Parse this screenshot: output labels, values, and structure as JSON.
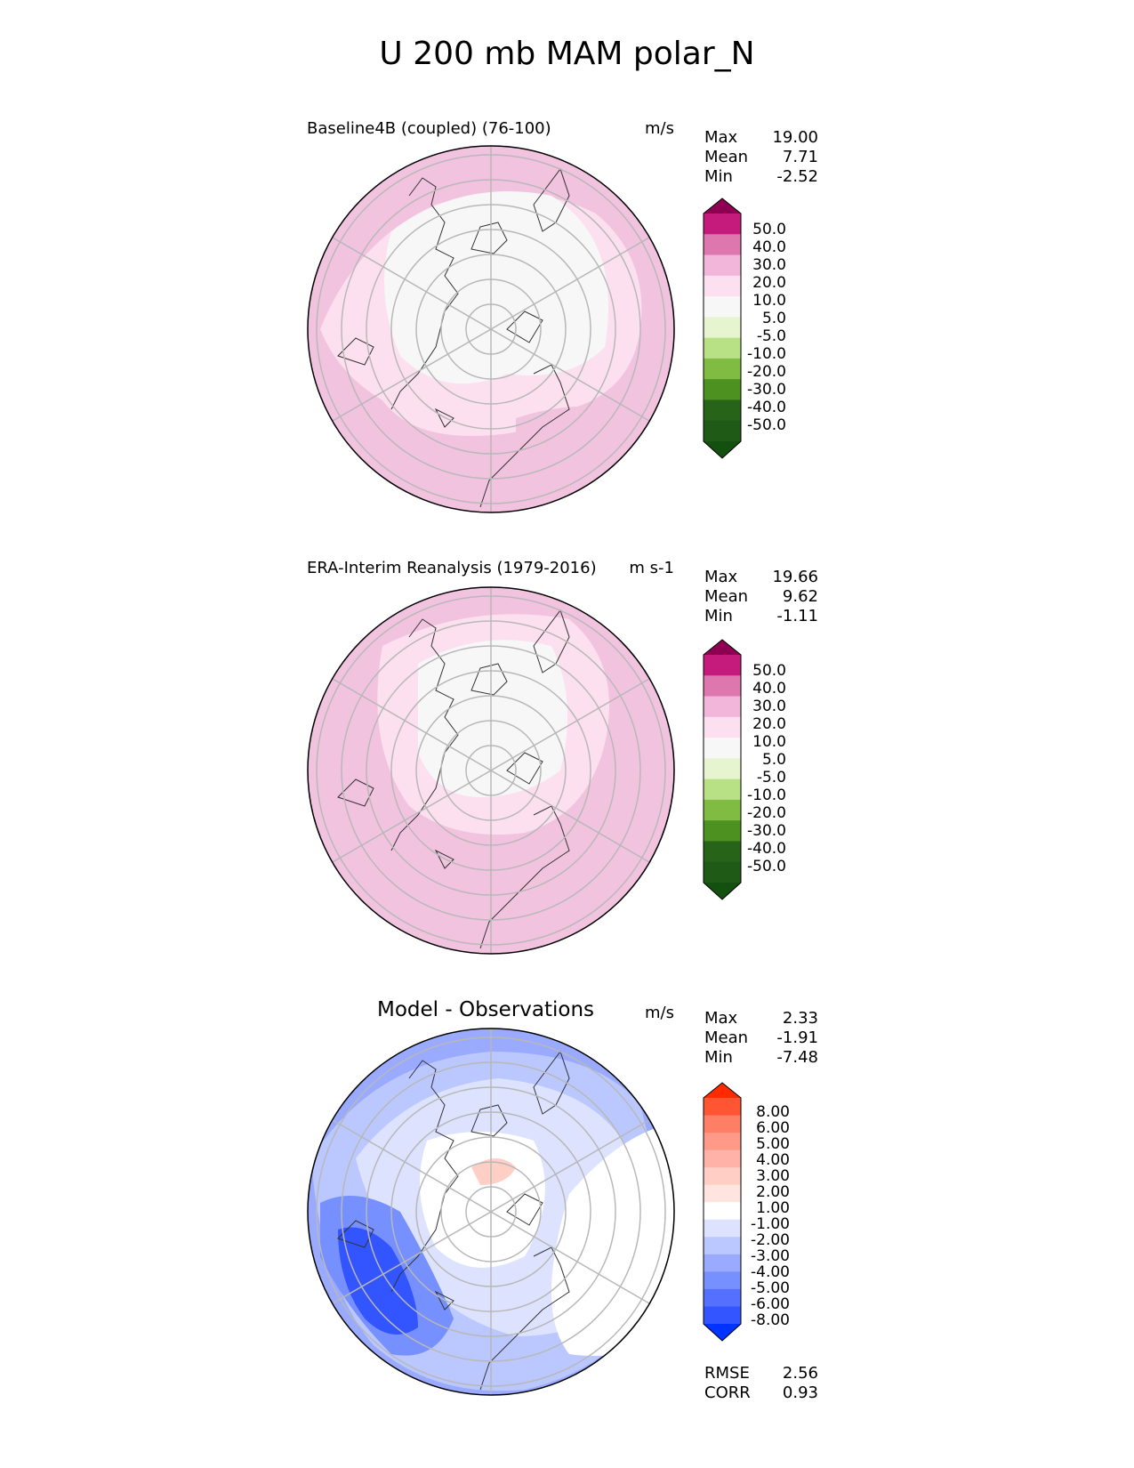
{
  "figure": {
    "title": "U 200 mb MAM polar_N"
  },
  "panels": [
    {
      "name": "model",
      "subtitle": "Baseline4B (coupled) (76-100)",
      "units": "m/s",
      "stats": [
        {
          "label": "Max",
          "value": "19.00"
        },
        {
          "label": "Mean",
          "value": "7.71"
        },
        {
          "label": "Min",
          "value": "-2.52"
        }
      ],
      "colorbar": {
        "ticks": [
          "50.0",
          "40.0",
          "30.0",
          "20.0",
          "10.0",
          "5.0",
          "-5.0",
          "-10.0",
          "-20.0",
          "-30.0",
          "-40.0",
          "-50.0"
        ],
        "colors": [
          "#8e0152",
          "#c51b7d",
          "#de77ae",
          "#f1b6da",
          "#fde0ef",
          "#f7f7f7",
          "#e6f5d0",
          "#b8e186",
          "#7fbc41",
          "#4d9221",
          "#276419",
          "#1f5a16",
          "#145010"
        ]
      }
    },
    {
      "name": "obs",
      "subtitle": "ERA-Interim Reanalysis (1979-2016)",
      "units": "m s-1",
      "stats": [
        {
          "label": "Max",
          "value": "19.66"
        },
        {
          "label": "Mean",
          "value": "9.62"
        },
        {
          "label": "Min",
          "value": "-1.11"
        }
      ],
      "colorbar": {
        "ticks": [
          "50.0",
          "40.0",
          "30.0",
          "20.0",
          "10.0",
          "5.0",
          "-5.0",
          "-10.0",
          "-20.0",
          "-30.0",
          "-40.0",
          "-50.0"
        ],
        "colors": [
          "#8e0152",
          "#c51b7d",
          "#de77ae",
          "#f1b6da",
          "#fde0ef",
          "#f7f7f7",
          "#e6f5d0",
          "#b8e186",
          "#7fbc41",
          "#4d9221",
          "#276419",
          "#1f5a16",
          "#145010"
        ]
      }
    },
    {
      "name": "diff",
      "subtitle": "Model - Observations",
      "units": "m/s",
      "stats": [
        {
          "label": "Max",
          "value": "2.33"
        },
        {
          "label": "Mean",
          "value": "-1.91"
        },
        {
          "label": "Min",
          "value": "-7.48"
        }
      ],
      "metrics": [
        {
          "label": "RMSE",
          "value": "2.56"
        },
        {
          "label": "CORR",
          "value": "0.93"
        }
      ],
      "colorbar": {
        "ticks": [
          "8.00",
          "6.00",
          "5.00",
          "4.00",
          "3.00",
          "2.00",
          "1.00",
          "-1.00",
          "-2.00",
          "-3.00",
          "-4.00",
          "-5.00",
          "-6.00",
          "-8.00"
        ],
        "colors": [
          "#ff2a00",
          "#ff5533",
          "#ff7f66",
          "#ff9988",
          "#ffb3a8",
          "#ffcfc6",
          "#ffe4df",
          "#ffffff",
          "#dde3ff",
          "#bbc8ff",
          "#99aaff",
          "#7790ff",
          "#5570ff",
          "#3355ff",
          "#0033ff"
        ]
      }
    }
  ]
}
